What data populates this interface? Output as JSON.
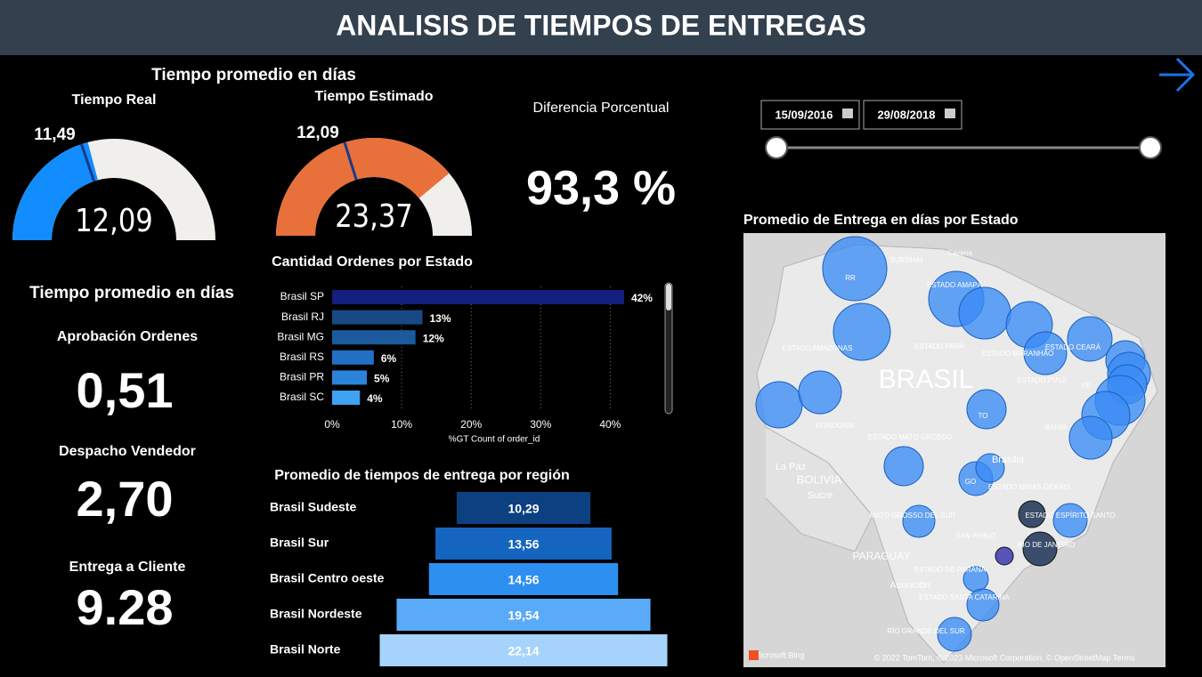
{
  "header": {
    "title": "ANALISIS DE TIEMPOS DE ENTREGAS"
  },
  "gauges_title": "Tiempo promedio en días",
  "gauges": [
    {
      "title": "Tiempo Real",
      "value": 12.09,
      "value_label": "12,09",
      "target": 11.49,
      "target_label": "11,49",
      "range": [
        0,
        29
      ],
      "color": "#118dff"
    },
    {
      "title": "Tiempo Estimado",
      "value": 23.37,
      "value_label": "23,37",
      "target": 12.09,
      "target_label": "12,09",
      "range": [
        0,
        30
      ],
      "color": "#e8703a"
    }
  ],
  "difference": {
    "title": "Diferencia Porcentual",
    "value": 93.3,
    "value_label": "93,3 %"
  },
  "date_slicer": {
    "start": "15/09/2016",
    "end": "29/08/2018"
  },
  "kpis": {
    "title": "Tiempo promedio en días",
    "items": [
      {
        "label": "Aprobación Ordenes",
        "value": 0.51,
        "value_label": "0,51"
      },
      {
        "label": "Despacho Vendedor",
        "value": 2.7,
        "value_label": "2,70"
      },
      {
        "label": "Entrega a Cliente",
        "value": 9.28,
        "value_label": "9.28"
      }
    ]
  },
  "bar_chart": {
    "type": "bar",
    "title": "Cantidad Ordenes por Estado",
    "categories": [
      "Brasil SP",
      "Brasil RJ",
      "Brasil MG",
      "Brasil RS",
      "Brasil PR",
      "Brasil SC"
    ],
    "values": [
      42,
      13,
      12,
      6,
      5,
      4
    ],
    "value_labels": [
      "42%",
      "13%",
      "12%",
      "6%",
      "5%",
      "4%"
    ],
    "colors": [
      "#141e7e",
      "#174a82",
      "#1b5a9c",
      "#2170c6",
      "#2a84da",
      "#3fa2f2"
    ],
    "xlim": [
      0,
      47
    ],
    "xticks": [
      {
        "value": 0,
        "label": "0%"
      },
      {
        "value": 10,
        "label": "10%"
      },
      {
        "value": 20,
        "label": "20%"
      },
      {
        "value": 30,
        "label": "30%"
      },
      {
        "value": 40,
        "label": "40%"
      }
    ],
    "xlabel": "%GT Count of order_id"
  },
  "funnel_chart": {
    "type": "funnel",
    "title": "Promedio de tiempos de entrega por región",
    "categories": [
      "Brasil Sudeste",
      "Brasil Sur",
      "Brasil Centro oeste",
      "Brasil Nordeste",
      "Brasil Norte"
    ],
    "values": [
      10.29,
      13.56,
      14.56,
      19.54,
      22.14
    ],
    "value_labels": [
      "10,29",
      "13,56",
      "14,56",
      "19,54",
      "22,14"
    ],
    "colors": [
      "#0d4080",
      "#1565c0",
      "#2d8ff0",
      "#5aabf7",
      "#a6d3fb"
    ]
  },
  "map": {
    "title": "Promedio de Entrega en días por Estado",
    "labels": [
      "SURINAM",
      "Cayena",
      "ESTADO AMAPÁ",
      "RR",
      "ESTADO AMAZONAS",
      "ESTADO PARÁ",
      "ESTADO MARANHÃO",
      "ESTADO CEARÁ",
      "BRASIL",
      "ESTADO PIAUÍ",
      "PE",
      "TO",
      "RONDONIA",
      "BAHÍA",
      "ESTADO MATO GROSSO",
      "La Paz",
      "Brasilia",
      "BOLIVIA",
      "GO",
      "ESTADO MINAS GERAIS",
      "Sucre",
      "MATO GROSSO DEL SUR",
      "ESTADO ESPÍRITO SANTO",
      "SAN PABLO",
      "RÍO DE JANEIRO",
      "PARAGUAY",
      "ESTADO DE PARANÁ",
      "Asunción",
      "ESTADO SANTA CATARINA",
      "RÍO GRANDE DEL SUR",
      "Microsoft Bing",
      "© 2022 TomTom, © 2023 Microsoft Corporation, © OpenStreetMap   Terms"
    ]
  }
}
